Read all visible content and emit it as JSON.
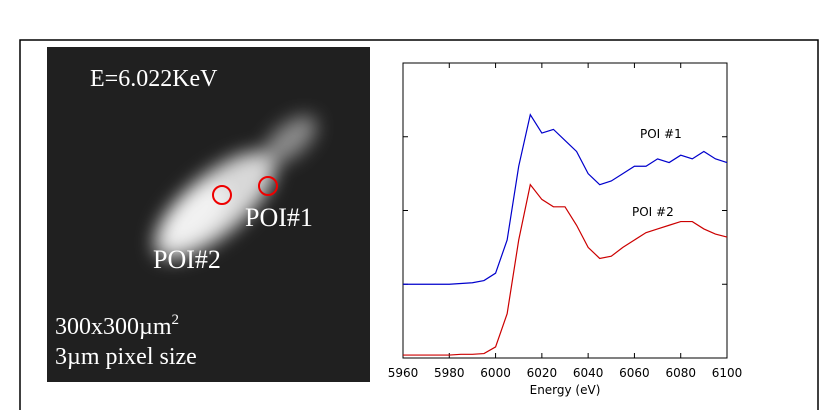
{
  "image_panel": {
    "energy": "E=6.022KeV",
    "poi1": "POI#1",
    "poi2": "POI#2",
    "field_size": "300x300µm",
    "field_size_exponent": "2",
    "pixel_size": "3µm pixel size"
  },
  "chart_data": {
    "type": "line",
    "x_label": "Energy (eV)",
    "x": [
      5960,
      5965,
      5970,
      5975,
      5980,
      5985,
      5990,
      5995,
      6000,
      6005,
      6010,
      6015,
      6020,
      6025,
      6030,
      6035,
      6040,
      6045,
      6050,
      6055,
      6060,
      6065,
      6070,
      6075,
      6080,
      6085,
      6090,
      6095,
      6100
    ],
    "series": [
      {
        "name": "POI #1",
        "color": "#0000cc",
        "values": [
          1.0,
          1.0,
          1.0,
          1.0,
          1.0,
          1.01,
          1.02,
          1.05,
          1.15,
          1.6,
          2.6,
          3.3,
          3.05,
          3.1,
          2.95,
          2.8,
          2.5,
          2.35,
          2.4,
          2.5,
          2.6,
          2.6,
          2.7,
          2.65,
          2.75,
          2.7,
          2.8,
          2.7,
          2.65
        ]
      },
      {
        "name": "POI #2",
        "color": "#cc0000",
        "values": [
          0.04,
          0.04,
          0.04,
          0.04,
          0.04,
          0.05,
          0.05,
          0.06,
          0.15,
          0.6,
          1.6,
          2.35,
          2.15,
          2.05,
          2.05,
          1.8,
          1.5,
          1.35,
          1.38,
          1.5,
          1.6,
          1.7,
          1.75,
          1.8,
          1.85,
          1.85,
          1.75,
          1.68,
          1.64
        ]
      }
    ],
    "xlim": [
      5960,
      6100
    ],
    "xticks": [
      5960,
      5980,
      6000,
      6020,
      6040,
      6060,
      6080,
      6100
    ],
    "ylim": [
      0,
      4
    ],
    "yticks": [
      1,
      2,
      3
    ]
  }
}
